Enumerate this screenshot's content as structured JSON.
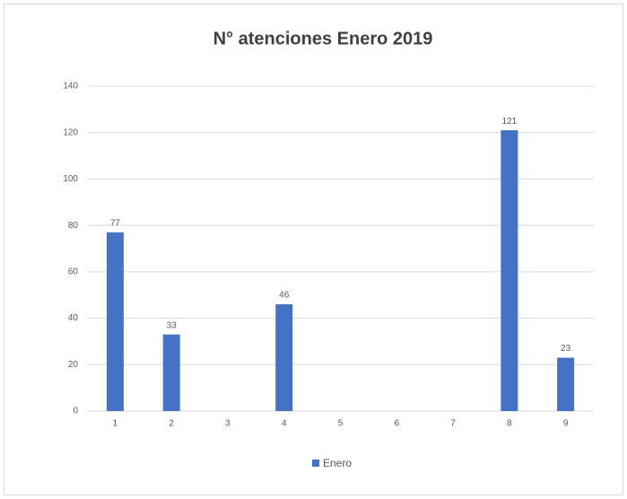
{
  "chart_data": {
    "type": "bar",
    "title": "N° atenciones Enero 2019",
    "categories": [
      "1",
      "2",
      "3",
      "4",
      "5",
      "6",
      "7",
      "8",
      "9"
    ],
    "series": [
      {
        "name": "Enero",
        "color": "#4472c4",
        "values": [
          77,
          33,
          null,
          46,
          null,
          null,
          null,
          121,
          23
        ]
      }
    ],
    "ylim": [
      0,
      140
    ],
    "yticks": [
      0,
      20,
      40,
      60,
      80,
      100,
      120,
      140
    ],
    "grid": true,
    "legend": "bottom"
  }
}
